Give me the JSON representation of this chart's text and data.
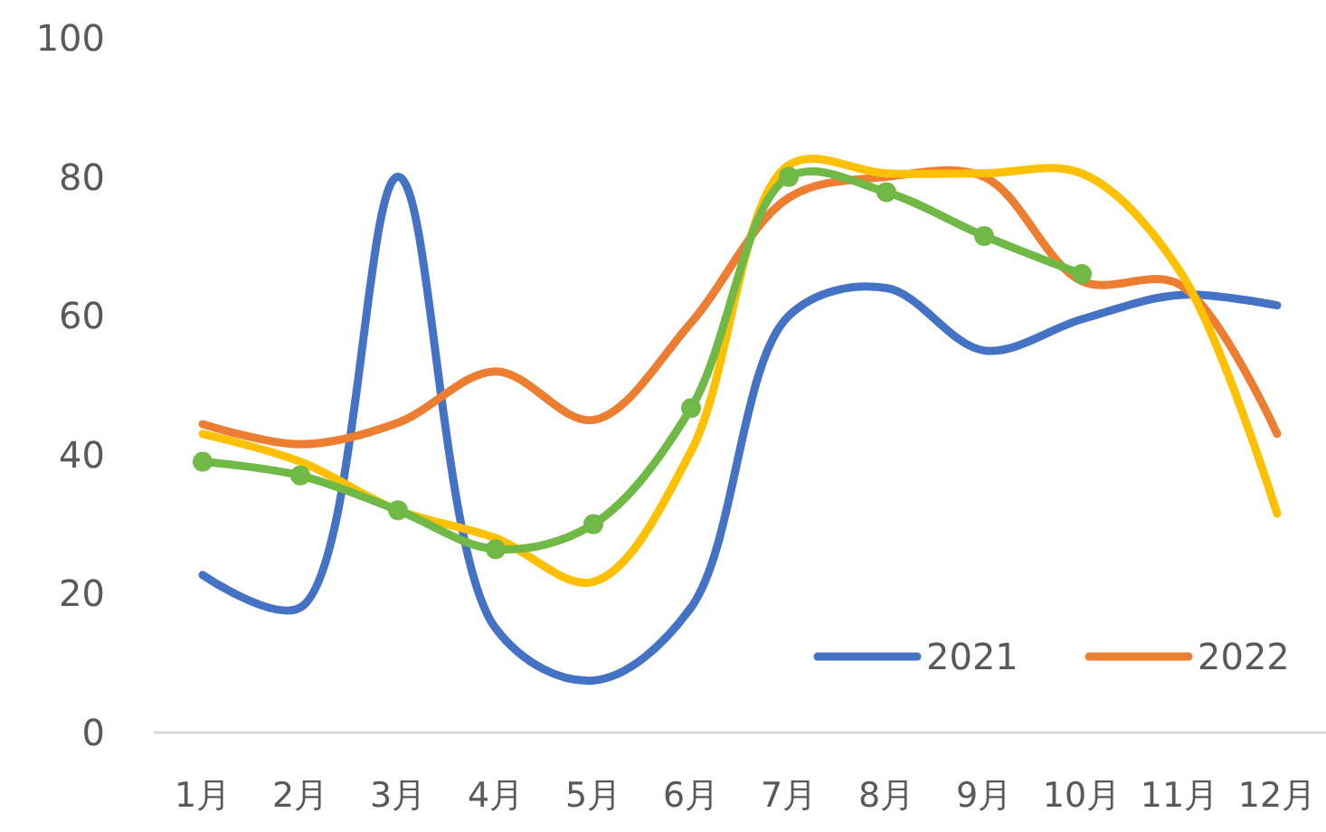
{
  "chart_data": {
    "type": "line",
    "categories": [
      "1月",
      "2月",
      "3月",
      "4月",
      "5月",
      "6月",
      "7月",
      "8月",
      "9月",
      "10月",
      "11月",
      "12月"
    ],
    "ylim": [
      0,
      100
    ],
    "yticks": [
      0,
      20,
      40,
      60,
      80,
      100
    ],
    "grid": false,
    "legend": "bottom right",
    "marker": "none",
    "line_style": "solid",
    "series": [
      {
        "name": "2021",
        "color": "#4472c4",
        "values": [
          22.7,
          18,
          80,
          15,
          7.5,
          18,
          60,
          64,
          55,
          59.5,
          63,
          61.5
        ]
      },
      {
        "name": "2022",
        "color": "#ed7d31",
        "values": [
          44.4,
          41.5,
          44.6,
          52,
          45,
          59,
          77,
          80,
          80,
          65,
          64.5,
          43
        ]
      },
      {
        "color": "#ffc000",
        "values": [
          43,
          39,
          32,
          28,
          21.7,
          40.5,
          81.7,
          80.5,
          80.5,
          80.5,
          66.5,
          31.5
        ]
      },
      {
        "color": "#70b946",
        "marker": "circle",
        "values": [
          39,
          37,
          32,
          26.4,
          30,
          46.7,
          80,
          77.8,
          71.5,
          66,
          null,
          null
        ]
      }
    ]
  }
}
